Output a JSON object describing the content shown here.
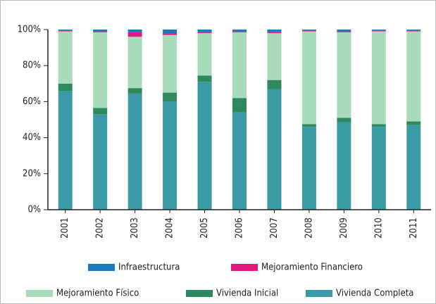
{
  "chart_data": {
    "type": "stacked_bar",
    "categories": [
      "2001",
      "2002",
      "2003",
      "2004",
      "2005",
      "2006",
      "2007",
      "2008",
      "2009",
      "2010",
      "2011"
    ],
    "series": [
      {
        "name": "Vivienda Completa",
        "color": "#3a9aa5",
        "values": [
          66,
          53,
          64.5,
          60,
          71,
          54,
          67,
          46,
          48.5,
          46,
          47
        ]
      },
      {
        "name": "Vivienda Inicial",
        "color": "#2e8a5e",
        "values": [
          4,
          3.5,
          3,
          5,
          3.5,
          8,
          5,
          1.5,
          2.5,
          1.5,
          2
        ]
      },
      {
        "name": "Mejoramiento Físico",
        "color": "#a8dbb9",
        "values": [
          29,
          42,
          28.5,
          32,
          23.5,
          36.5,
          26,
          51.5,
          47.5,
          51.5,
          50
        ]
      },
      {
        "name": "Mejoramiento Financiero",
        "color": "#e0197d",
        "values": [
          0.5,
          0.5,
          2.5,
          1,
          0.5,
          0.5,
          0.5,
          0.5,
          0.5,
          0.3,
          0.3
        ]
      },
      {
        "name": "Infraestructura",
        "color": "#1878c0",
        "values": [
          0.5,
          1,
          1.5,
          2,
          1.5,
          1,
          1.5,
          0.5,
          1,
          0.7,
          0.7
        ]
      }
    ],
    "ylim": [
      0,
      100
    ],
    "yticks": [
      {
        "value": 0,
        "label": "0%"
      },
      {
        "value": 20,
        "label": "20%"
      },
      {
        "value": 40,
        "label": "40%"
      },
      {
        "value": 60,
        "label": "60%"
      },
      {
        "value": 80,
        "label": "80%"
      },
      {
        "value": 100,
        "label": "100%"
      }
    ],
    "grid": false
  }
}
